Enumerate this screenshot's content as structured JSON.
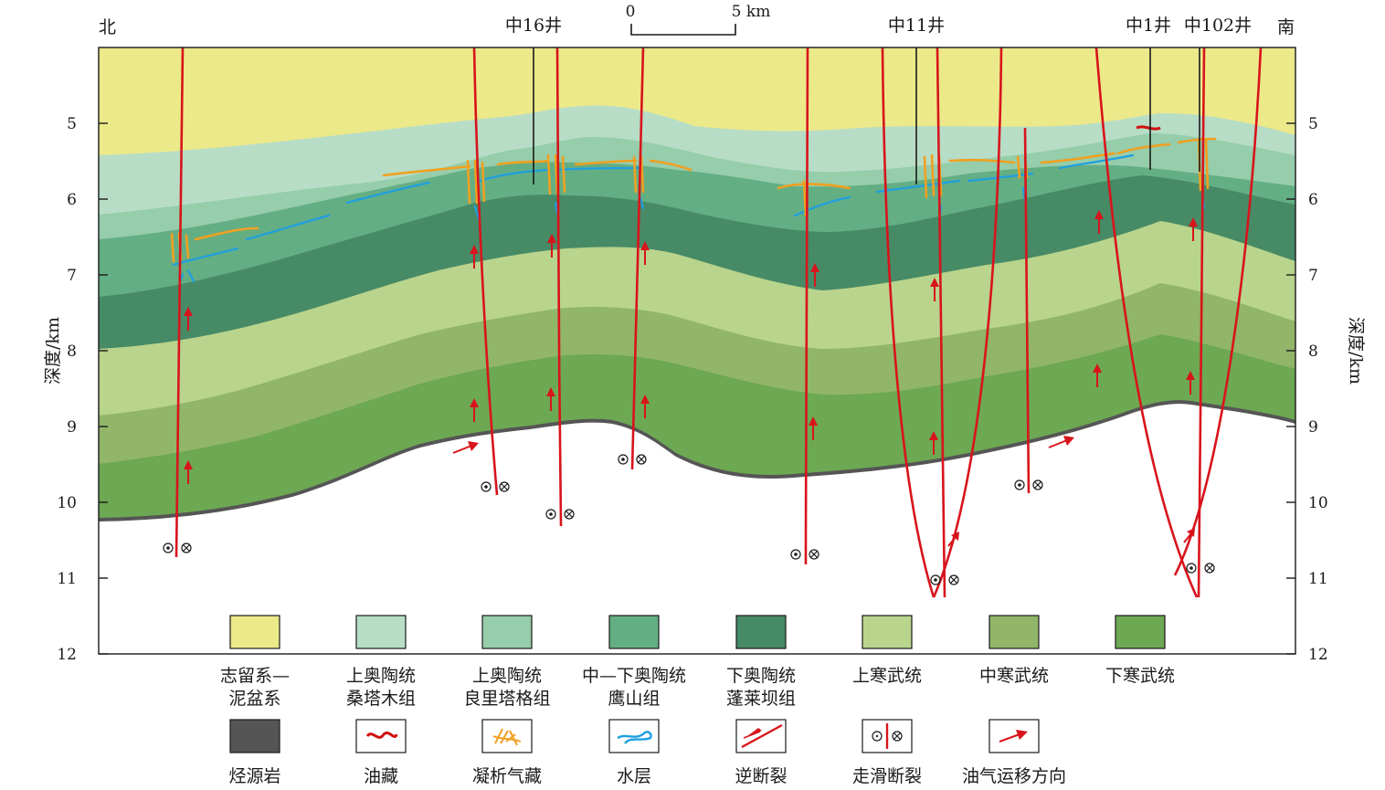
{
  "header": {
    "north": "北",
    "south": "南",
    "wells": [
      {
        "name": "中16井"
      },
      {
        "name": "中11井"
      },
      {
        "name": "中1井"
      },
      {
        "name": "中102井"
      }
    ],
    "scale": {
      "zero": "0",
      "five": "5 km"
    }
  },
  "axes": {
    "left_label": "深度/km",
    "right_label": "深度/km",
    "ticks": [
      "5",
      "6",
      "7",
      "8",
      "9",
      "10",
      "11",
      "12"
    ],
    "depth_range": [
      4,
      12
    ]
  },
  "colors": {
    "silurian_devonian": "#ece98a",
    "upper_ord_sangtamu": "#b7ddc6",
    "upper_ord_lianglitage": "#96cdaa",
    "mid_lower_ord_yingshan": "#64ae84",
    "lower_ord_penglaiba": "#478a66",
    "upper_cambrian": "#b9d48c",
    "middle_cambrian": "#91b569",
    "lower_cambrian": "#6da852",
    "source_rock": "#555555",
    "oil": "#d01010",
    "condensate_gas": "#f0a020",
    "water": "#1e9fe0",
    "fault": "#d8141c",
    "arrow": "#d8141c"
  },
  "legend": {
    "row1": [
      {
        "key": "silurian_devonian",
        "line1": "志留系—",
        "line2": "泥盆系"
      },
      {
        "key": "upper_ord_sangtamu",
        "line1": "上奥陶统",
        "line2": "桑塔木组"
      },
      {
        "key": "upper_ord_lianglitage",
        "line1": "上奥陶统",
        "line2": "良里塔格组"
      },
      {
        "key": "mid_lower_ord_yingshan",
        "line1": "中—下奥陶统",
        "line2": "鹰山组"
      },
      {
        "key": "lower_ord_penglaiba",
        "line1": "下奥陶统",
        "line2": "蓬莱坝组"
      },
      {
        "key": "upper_cambrian",
        "line1": "上寒武统",
        "line2": ""
      },
      {
        "key": "middle_cambrian",
        "line1": "中寒武统",
        "line2": ""
      },
      {
        "key": "lower_cambrian",
        "line1": "下寒武统",
        "line2": ""
      }
    ],
    "row2": [
      {
        "key": "source_rock",
        "label": "烃源岩",
        "symbol": "fill"
      },
      {
        "key": "oil",
        "label": "油藏",
        "symbol": "oil-reservoir-icon"
      },
      {
        "key": "condensate_gas",
        "label": "凝析气藏",
        "symbol": "condensate-gas-icon"
      },
      {
        "key": "water",
        "label": "水层",
        "symbol": "water-layer-icon"
      },
      {
        "key": "thrust_fault",
        "label": "逆断裂",
        "symbol": "thrust-fault-icon"
      },
      {
        "key": "strike_slip_fault",
        "label": "走滑断裂",
        "symbol": "strike-slip-fault-icon"
      },
      {
        "key": "migration",
        "label": "油气运移方向",
        "symbol": "migration-arrow-icon"
      }
    ]
  }
}
